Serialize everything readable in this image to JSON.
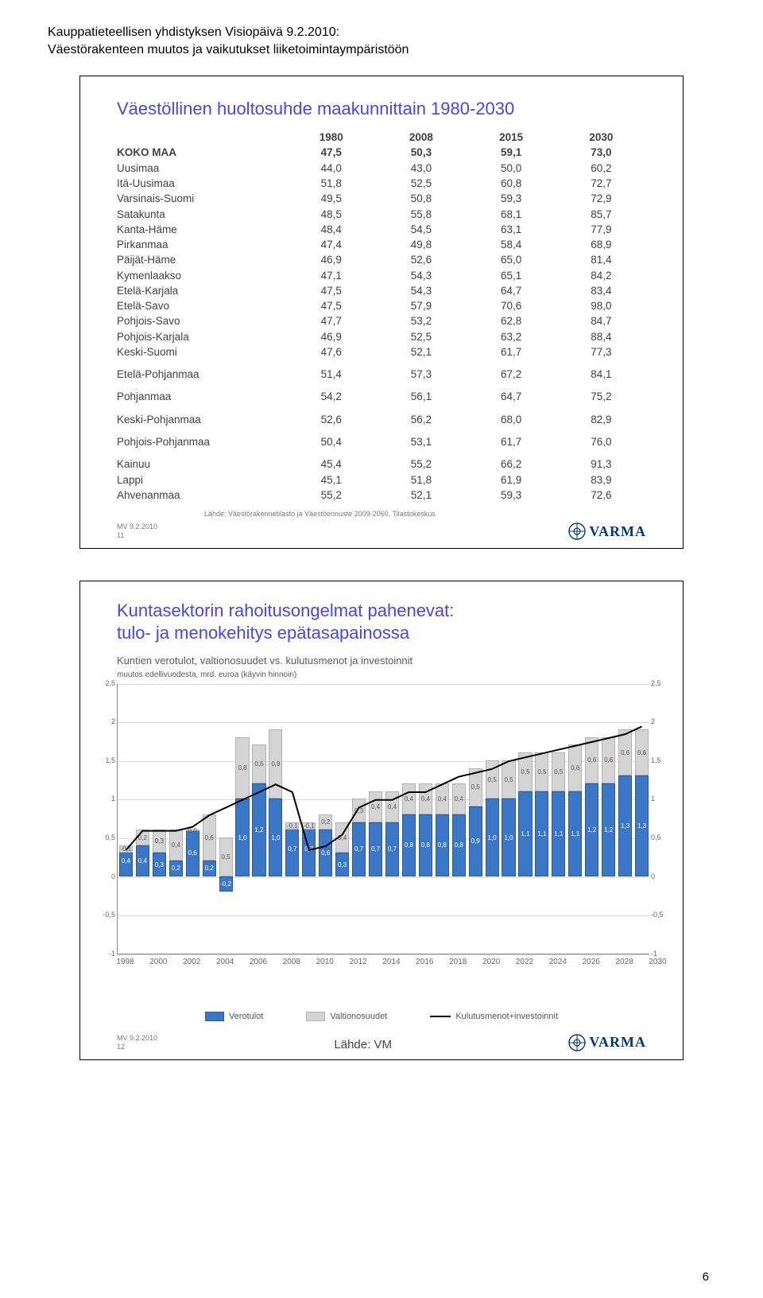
{
  "doc_header": {
    "line1": "Kauppatieteellisen yhdistyksen Visiopäivä 9.2.2010:",
    "line2": "Väestörakenteen muutos ja vaikutukset liiketoimintaympäristöön"
  },
  "slide1": {
    "title": "Väestöllinen huoltosuhde maakunnittain 1980-2030",
    "header": [
      "",
      "1980",
      "2008",
      "2015",
      "2030"
    ],
    "rows": [
      {
        "label": "KOKO MAA",
        "v": [
          "47,5",
          "50,3",
          "59,1",
          "73,0"
        ],
        "bold": true
      },
      {
        "label": "Uusimaa",
        "v": [
          "44,0",
          "43,0",
          "50,0",
          "60,2"
        ]
      },
      {
        "label": "Itä-Uusimaa",
        "v": [
          "51,8",
          "52,5",
          "60,8",
          "72,7"
        ]
      },
      {
        "label": "Varsinais-Suomi",
        "v": [
          "49,5",
          "50,8",
          "59,3",
          "72,9"
        ]
      },
      {
        "label": "Satakunta",
        "v": [
          "48,5",
          "55,8",
          "68,1",
          "85,7"
        ]
      },
      {
        "label": "Kanta-Häme",
        "v": [
          "48,4",
          "54,5",
          "63,1",
          "77,9"
        ]
      },
      {
        "label": "Pirkanmaa",
        "v": [
          "47,4",
          "49,8",
          "58,4",
          "68,9"
        ]
      },
      {
        "label": "Päijät-Häme",
        "v": [
          "46,9",
          "52,6",
          "65,0",
          "81,4"
        ]
      },
      {
        "label": "Kymenlaakso",
        "v": [
          "47,1",
          "54,3",
          "65,1",
          "84,2"
        ]
      },
      {
        "label": "Etelä-Karjala",
        "v": [
          "47,5",
          "54,3",
          "64,7",
          "83,4"
        ]
      },
      {
        "label": "Etelä-Savo",
        "v": [
          "47,5",
          "57,9",
          "70,6",
          "98,0"
        ]
      },
      {
        "label": "Pohjois-Savo",
        "v": [
          "47,7",
          "53,2",
          "62,8",
          "84,7"
        ]
      },
      {
        "label": "Pohjois-Karjala",
        "v": [
          "46,9",
          "52,5",
          "63,2",
          "88,4"
        ]
      },
      {
        "label": "Keski-Suomi",
        "v": [
          "47,6",
          "52,1",
          "61,7",
          "77,3"
        ]
      },
      {
        "label": "Etelä-Pohjanmaa",
        "v": [
          "51,4",
          "57,3",
          "67,2",
          "84,1"
        ],
        "gap": true
      },
      {
        "label": "Pohjanmaa",
        "v": [
          "54,2",
          "56,1",
          "64,7",
          "75,2"
        ],
        "gap": true
      },
      {
        "label": "Keski-Pohjanmaa",
        "v": [
          "52,6",
          "56,2",
          "68,0",
          "82,9"
        ],
        "gap": true
      },
      {
        "label": "Pohjois-Pohjanmaa",
        "v": [
          "50,4",
          "53,1",
          "61,7",
          "76,0"
        ],
        "gap": true
      },
      {
        "label": "Kainuu",
        "v": [
          "45,4",
          "55,2",
          "66,2",
          "91,3"
        ],
        "gap": true
      },
      {
        "label": "Lappi",
        "v": [
          "45,1",
          "51,8",
          "61,9",
          "83,9"
        ]
      },
      {
        "label": "Ahvenanmaa",
        "v": [
          "55,2",
          "52,1",
          "59,3",
          "72,6"
        ]
      }
    ],
    "source": "Lähde: Väestörakennetilasto ja Väestöennuste 2009-2060, Tilastokeskus",
    "footer_mv": "MV 9.2.2010",
    "footer_num": "11",
    "logo": "VARMA"
  },
  "slide2": {
    "title1": "Kuntasektorin rahoitusongelmat pahenevat:",
    "title2": "tulo- ja menokehitys epätasapainossa",
    "sub1": "Kuntien verotulot, valtionosuudet vs. kulutusmenot ja investoinnit",
    "sub2": "muutos edellivuodesta, mrd. euroa (käyvin hinnoin)",
    "chart": {
      "y_range": [
        -1,
        2.5
      ],
      "y_ticks": [
        "2,5",
        "2",
        "1,5",
        "1",
        "0,5",
        "0",
        "-0,5",
        "-1"
      ],
      "x_ticks": [
        "1998",
        "2000",
        "2002",
        "2004",
        "2006",
        "2008",
        "2010",
        "2012",
        "2014",
        "2016",
        "2018",
        "2020",
        "2022",
        "2024",
        "2026",
        "2028",
        "2030"
      ],
      "colors": {
        "blue": "#3a77c6",
        "grey": "#d4d4d4",
        "blue_border": "#2a5a9a",
        "grey_border": "#b2b2b2",
        "line": "#000000",
        "grid": "#dcdcdc",
        "bg": "#ffffff"
      },
      "bars": [
        {
          "b": 0.4,
          "g": -0.1,
          "bl": "0,4",
          "gl": "-0,1"
        },
        {
          "b": 0.4,
          "g": 0.2,
          "bl": "0,4",
          "gl": "0,2"
        },
        {
          "b": 0.3,
          "g": 0.3,
          "bl": "0,3",
          "gl": "0,3"
        },
        {
          "b": 0.2,
          "g": 0.4,
          "bl": "0,2",
          "gl": "0,4"
        },
        {
          "b": 0.6,
          "g": 0.0,
          "bl": "0,6",
          "gl": "0,0"
        },
        {
          "b": 0.2,
          "g": 0.6,
          "bl": "0,2",
          "gl": "0,6"
        },
        {
          "b": -0.2,
          "g": 0.5,
          "bl": "-0,2",
          "gl": "0,5"
        },
        {
          "b": 1.0,
          "g": 0.8,
          "bl": "1,0",
          "gl": "0,8"
        },
        {
          "b": 1.2,
          "g": 0.5,
          "bl": "1,2",
          "gl": "0,5"
        },
        {
          "b": 1.0,
          "g": 0.9,
          "bl": "1,0",
          "gl": "0,9"
        },
        {
          "b": 0.7,
          "g": -0.1,
          "bl": "0,7",
          "gl": "-0,1"
        },
        {
          "b": 0.7,
          "g": -0.1,
          "bl": "0,7",
          "gl": "-0,1"
        },
        {
          "b": 0.6,
          "g": 0.2,
          "bl": "0,6",
          "gl": "0,2"
        },
        {
          "b": 0.3,
          "g": 0.4,
          "bl": "0,3",
          "gl": "0,4"
        },
        {
          "b": 0.7,
          "g": 0.3,
          "bl": "0,7",
          "gl": "0,3"
        },
        {
          "b": 0.7,
          "g": 0.4,
          "bl": "0,7",
          "gl": "0,4"
        },
        {
          "b": 0.7,
          "g": 0.4,
          "bl": "0,7",
          "gl": "0,4"
        },
        {
          "b": 0.8,
          "g": 0.4,
          "bl": "0,8",
          "gl": "0,4"
        },
        {
          "b": 0.8,
          "g": 0.4,
          "bl": "0,8",
          "gl": "0,4"
        },
        {
          "b": 0.8,
          "g": 0.4,
          "bl": "0,8",
          "gl": "0,4"
        },
        {
          "b": 0.8,
          "g": 0.4,
          "bl": "0,8",
          "gl": "0,4"
        },
        {
          "b": 0.9,
          "g": 0.5,
          "bl": "0,9",
          "gl": "0,5"
        },
        {
          "b": 1.0,
          "g": 0.5,
          "bl": "1,0",
          "gl": "0,5"
        },
        {
          "b": 1.0,
          "g": 0.5,
          "bl": "1,0",
          "gl": "0,5"
        },
        {
          "b": 1.1,
          "g": 0.5,
          "bl": "1,1",
          "gl": "0,5"
        },
        {
          "b": 1.1,
          "g": 0.5,
          "bl": "1,1",
          "gl": "0,5"
        },
        {
          "b": 1.1,
          "g": 0.5,
          "bl": "1,1",
          "gl": "0,5"
        },
        {
          "b": 1.1,
          "g": 0.6,
          "bl": "1,1",
          "gl": "0,6"
        },
        {
          "b": 1.2,
          "g": 0.6,
          "bl": "1,2",
          "gl": "0,6"
        },
        {
          "b": 1.2,
          "g": 0.6,
          "bl": "1,2",
          "gl": "0,6"
        },
        {
          "b": 1.3,
          "g": 0.6,
          "bl": "1,3",
          "gl": "0,6"
        },
        {
          "b": 1.3,
          "g": 0.6,
          "bl": "1,3",
          "gl": "0,6"
        }
      ],
      "line_points": [
        0.35,
        0.6,
        0.6,
        0.6,
        0.65,
        0.8,
        0.9,
        1.0,
        1.1,
        1.2,
        1.1,
        0.35,
        0.4,
        0.55,
        0.9,
        1.0,
        1.0,
        1.1,
        1.1,
        1.2,
        1.3,
        1.35,
        1.4,
        1.5,
        1.55,
        1.6,
        1.65,
        1.7,
        1.75,
        1.8,
        1.85,
        1.95
      ]
    },
    "legend": {
      "a": "Verotulot",
      "b": "Valtionosuudet",
      "c": "Kulutusmenot+investoinnit"
    },
    "source": "Lähde: VM",
    "footer_mv": "MV 9.2.2010",
    "footer_num": "12",
    "logo": "VARMA"
  },
  "page_num": "6"
}
